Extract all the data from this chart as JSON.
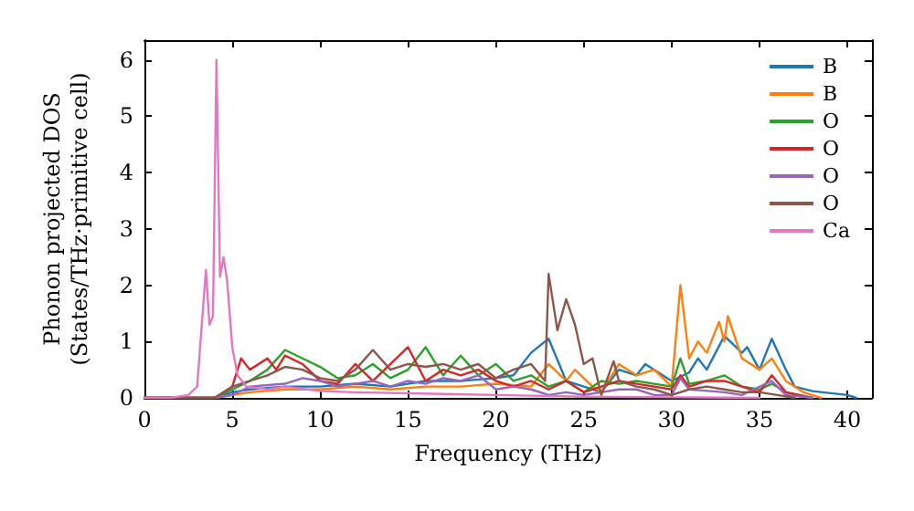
{
  "chart_data": {
    "type": "line",
    "xlabel": "Frequency (THz)",
    "ylabel": "Phonon projected DOS\n(States/THz·primitive cell)",
    "xlim": [
      0,
      41.4
    ],
    "ylim": [
      0,
      6.35
    ],
    "xticks": [
      0,
      5,
      10,
      15,
      20,
      25,
      30,
      35,
      40
    ],
    "yticks": [
      0,
      1,
      2,
      3,
      4,
      5,
      6
    ],
    "grid": false,
    "legend": "top right",
    "marker": "none",
    "line_style": "solid",
    "series": [
      {
        "name": "B",
        "color": "#1f77b4",
        "x": [
          0,
          4,
          5,
          6,
          8,
          10,
          12,
          14,
          16,
          18,
          20,
          21,
          22,
          23,
          24,
          25,
          26,
          27,
          28,
          28.5,
          30,
          31,
          31.5,
          32,
          33,
          34,
          34.3,
          35,
          35.7,
          36.5,
          37,
          38,
          40,
          40.5
        ],
        "values": [
          0,
          0,
          0.1,
          0.15,
          0.2,
          0.2,
          0.25,
          0.2,
          0.3,
          0.3,
          0.35,
          0.4,
          0.8,
          1.05,
          0.3,
          0.2,
          0.1,
          0.5,
          0.4,
          0.6,
          0.3,
          0.45,
          0.7,
          0.5,
          1.1,
          0.8,
          0.9,
          0.5,
          1.05,
          0.5,
          0.2,
          0.12,
          0.05,
          0
        ]
      },
      {
        "name": "B",
        "color": "#ff7f0e",
        "x": [
          0,
          4,
          6,
          8,
          10,
          12,
          14,
          16,
          18,
          20,
          22,
          23,
          24,
          24.5,
          25.5,
          26,
          27,
          28,
          29,
          30,
          30.5,
          31,
          31.5,
          32,
          32.7,
          33,
          33.2,
          34,
          35,
          35.7,
          36.5,
          37.5,
          38.5
        ],
        "values": [
          0,
          0,
          0.1,
          0.15,
          0.15,
          0.2,
          0.15,
          0.2,
          0.2,
          0.25,
          0.2,
          0.6,
          0.3,
          0.5,
          0.2,
          0.1,
          0.6,
          0.4,
          0.5,
          0.2,
          2.0,
          0.7,
          1.0,
          0.8,
          1.35,
          1.0,
          1.45,
          0.7,
          0.5,
          0.7,
          0.3,
          0.1,
          0
        ]
      },
      {
        "name": "O",
        "color": "#2ca02c",
        "x": [
          0,
          4,
          6,
          7,
          8,
          9,
          10,
          11,
          12,
          13,
          14,
          15,
          16,
          17,
          18,
          19,
          20,
          21,
          22,
          23,
          24,
          25,
          26,
          27,
          28,
          29,
          30,
          30.5,
          31,
          32,
          33,
          34,
          35,
          35.7,
          36.5,
          38
        ],
        "values": [
          0,
          0,
          0.3,
          0.5,
          0.85,
          0.7,
          0.55,
          0.35,
          0.4,
          0.6,
          0.35,
          0.5,
          0.9,
          0.4,
          0.75,
          0.4,
          0.6,
          0.3,
          0.4,
          0.2,
          0.3,
          0.1,
          0.3,
          0.25,
          0.3,
          0.25,
          0.2,
          0.7,
          0.25,
          0.3,
          0.4,
          0.2,
          0.15,
          0.25,
          0.1,
          0
        ]
      },
      {
        "name": "O",
        "color": "#d62728",
        "x": [
          0,
          4,
          5,
          5.5,
          6,
          7,
          7.5,
          8,
          9,
          10,
          11,
          12,
          13,
          14,
          15,
          16,
          17,
          18,
          19,
          20,
          21,
          22,
          23,
          24,
          25,
          26,
          27,
          28,
          29,
          30,
          30.5,
          31,
          32,
          33,
          34,
          35,
          35.7,
          36.5,
          38
        ],
        "values": [
          0,
          0,
          0.2,
          0.7,
          0.5,
          0.7,
          0.5,
          0.75,
          0.6,
          0.3,
          0.25,
          0.6,
          0.3,
          0.6,
          0.9,
          0.3,
          0.5,
          0.4,
          0.5,
          0.3,
          0.2,
          0.3,
          0.15,
          0.3,
          0.1,
          0.2,
          0.3,
          0.25,
          0.2,
          0.15,
          0.4,
          0.2,
          0.3,
          0.3,
          0.2,
          0.1,
          0.4,
          0.1,
          0
        ]
      },
      {
        "name": "O",
        "color": "#9467bd",
        "x": [
          0,
          4,
          5,
          6,
          8,
          9,
          10,
          11,
          12,
          13,
          14,
          15,
          16,
          17,
          18,
          19,
          20,
          21,
          22,
          23,
          24,
          25,
          26,
          27,
          28,
          29,
          30,
          30.5,
          31,
          33,
          34,
          35.7,
          36.5,
          38
        ],
        "values": [
          0,
          0,
          0.05,
          0.2,
          0.25,
          0.35,
          0.3,
          0.2,
          0.25,
          0.3,
          0.2,
          0.3,
          0.25,
          0.35,
          0.3,
          0.4,
          0.15,
          0.2,
          0.15,
          0.05,
          0.1,
          0.05,
          0.1,
          0.15,
          0.15,
          0.05,
          0.05,
          0.35,
          0.15,
          0.1,
          0.05,
          0.3,
          0.05,
          0
        ]
      },
      {
        "name": "O",
        "color": "#8c564b",
        "x": [
          0,
          4,
          5,
          6,
          7,
          8,
          9,
          10,
          11,
          12,
          13,
          14,
          15,
          16,
          17,
          18,
          19,
          20,
          21,
          22,
          22.8,
          23,
          23.5,
          24,
          24.5,
          25,
          25.5,
          26,
          26.7,
          27,
          28,
          29,
          30,
          31,
          32,
          33,
          34,
          35,
          36,
          37
        ],
        "values": [
          0,
          0,
          0.2,
          0.3,
          0.4,
          0.55,
          0.5,
          0.35,
          0.3,
          0.5,
          0.85,
          0.5,
          0.6,
          0.55,
          0.6,
          0.5,
          0.6,
          0.35,
          0.5,
          0.6,
          0.3,
          2.2,
          1.2,
          1.75,
          1.3,
          0.6,
          0.7,
          0.05,
          0.65,
          0.3,
          0.2,
          0.15,
          0.05,
          0.15,
          0.2,
          0.15,
          0.1,
          0.1,
          0.05,
          0
        ]
      },
      {
        "name": "Ca",
        "color": "#e377c2",
        "x": [
          0,
          1.5,
          2.5,
          3,
          3.5,
          3.7,
          3.9,
          4.1,
          4.3,
          4.5,
          4.7,
          5,
          5.3,
          5.8,
          7,
          8,
          10,
          12,
          15,
          20,
          25,
          30,
          35
        ],
        "values": [
          0,
          0,
          0.05,
          0.2,
          2.27,
          1.3,
          1.45,
          6.0,
          2.15,
          2.5,
          2.1,
          0.9,
          0.4,
          0.2,
          0.15,
          0.2,
          0.12,
          0.1,
          0.08,
          0.05,
          0.02,
          0.01,
          0
        ]
      }
    ]
  }
}
